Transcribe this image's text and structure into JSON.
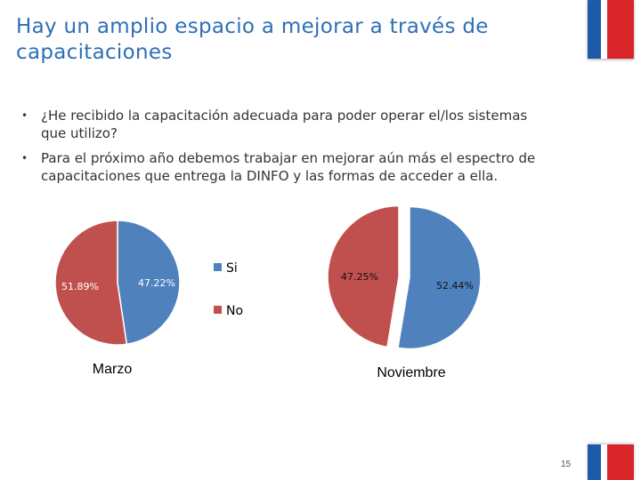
{
  "slide": {
    "title": "Hay un amplio espacio a mejorar a través de capacitaciones",
    "bullets": [
      "¿He recibido la capacitación adecuada para poder operar el/los sistemas que utilizo?",
      "Para el próximo año debemos trabajar en mejorar aún más el espectro de capacitaciones que entrega la DINFO y las formas de acceder a ella."
    ],
    "page_number": "15"
  },
  "colors": {
    "si": "#4f81bd",
    "no": "#c0504d",
    "title": "#2e6fb5"
  },
  "chart_data": [
    {
      "type": "pie",
      "title": "Marzo",
      "slices": [
        {
          "label": "Si",
          "value": 47.22,
          "value_label": "47.22%"
        },
        {
          "label": "No",
          "value": 51.89,
          "value_label": "51.89%"
        }
      ],
      "legend": [
        "Si",
        "No"
      ]
    },
    {
      "type": "pie",
      "title": "Noviembre",
      "slices": [
        {
          "label": "Si",
          "value": 52.44,
          "value_label": "52.44%"
        },
        {
          "label": "No",
          "value": 47.25,
          "value_label": "47.25%"
        }
      ]
    }
  ]
}
